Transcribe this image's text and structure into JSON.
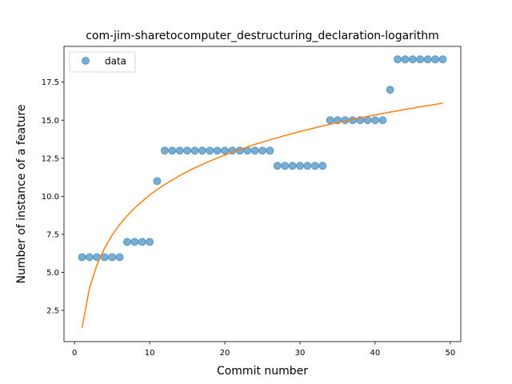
{
  "chart_data": {
    "type": "scatter",
    "title": "com-jim-sharetocomputer_destructuring_declaration-logarithm",
    "xlabel": "Commit number",
    "ylabel": "Number of instance of a feature",
    "xlim": [
      -1.4,
      51.4
    ],
    "ylim": [
      0.45,
      19.85
    ],
    "x_ticks": [
      0,
      10,
      20,
      30,
      40,
      50
    ],
    "x_tick_labels": [
      "0",
      "10",
      "20",
      "30",
      "40",
      "50"
    ],
    "y_ticks": [
      2.5,
      5.0,
      7.5,
      10.0,
      12.5,
      15.0,
      17.5
    ],
    "y_tick_labels": [
      "2.5",
      "5.0",
      "7.5",
      "10.0",
      "12.5",
      "15.0",
      "17.5"
    ],
    "grid": false,
    "legend_position": "upper-left",
    "series": [
      {
        "name": "data",
        "kind": "points",
        "color": "#1f77b4",
        "x": [
          1,
          2,
          3,
          4,
          5,
          6,
          7,
          8,
          9,
          10,
          11,
          12,
          13,
          14,
          15,
          16,
          17,
          18,
          19,
          20,
          21,
          22,
          23,
          24,
          25,
          26,
          27,
          28,
          29,
          30,
          31,
          32,
          33,
          34,
          35,
          36,
          37,
          38,
          39,
          40,
          41,
          42,
          43,
          44,
          45,
          46,
          47,
          48,
          49
        ],
        "y": [
          6,
          6,
          6,
          6,
          6,
          6,
          7,
          7,
          7,
          7,
          11,
          13,
          13,
          13,
          13,
          13,
          13,
          13,
          13,
          13,
          13,
          13,
          13,
          13,
          13,
          13,
          12,
          12,
          12,
          12,
          12,
          12,
          12,
          15,
          15,
          15,
          15,
          15,
          15,
          15,
          15,
          17,
          19,
          19,
          19,
          19,
          19,
          19,
          19
        ]
      },
      {
        "kind": "fit-line",
        "color": "#ff7f0e",
        "x": [
          1,
          2,
          3,
          4,
          5,
          6,
          7,
          8,
          9,
          10,
          11,
          12,
          13,
          14,
          15,
          16,
          17,
          18,
          19,
          20,
          21,
          22,
          23,
          24,
          25,
          26,
          27,
          28,
          29,
          30,
          31,
          32,
          33,
          34,
          35,
          36,
          37,
          38,
          39,
          40,
          41,
          42,
          43,
          44,
          45,
          46,
          47,
          48,
          49
        ],
        "y": [
          1.35,
          3.98,
          5.51,
          6.6,
          7.45,
          8.14,
          8.72,
          9.23,
          9.67,
          10.08,
          10.44,
          10.77,
          11.07,
          11.36,
          11.62,
          11.86,
          12.09,
          12.31,
          12.52,
          12.71,
          12.9,
          13.07,
          13.24,
          13.41,
          13.56,
          13.71,
          13.85,
          13.99,
          14.12,
          14.25,
          14.38,
          14.5,
          14.62,
          14.73,
          14.84,
          14.95,
          15.05,
          15.15,
          15.25,
          15.35,
          15.44,
          15.53,
          15.62,
          15.71,
          15.79,
          15.88,
          15.96,
          16.04,
          16.12
        ]
      }
    ]
  }
}
